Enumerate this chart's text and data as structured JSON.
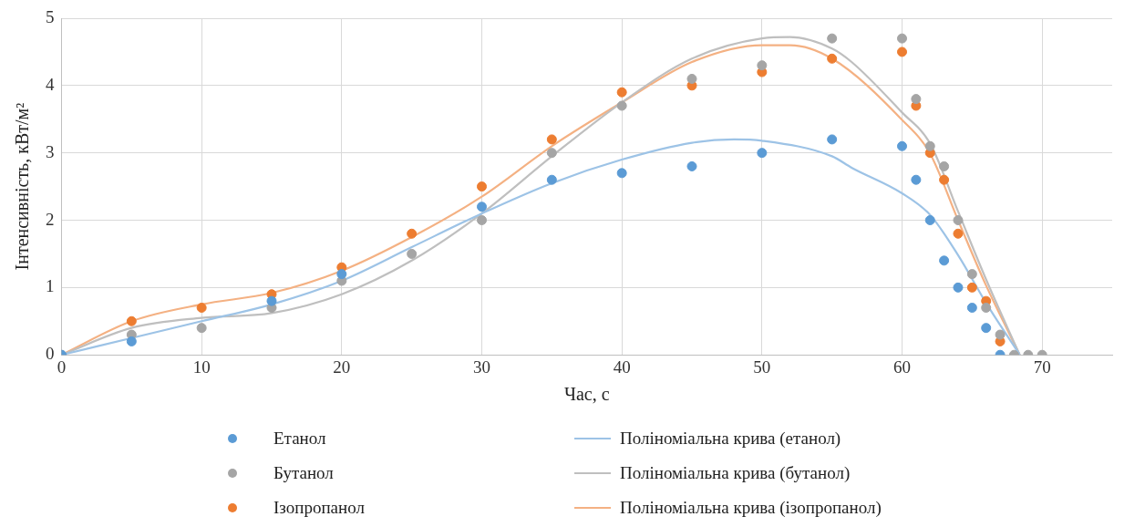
{
  "chart_data": {
    "type": "scatter",
    "xlabel": "Час, с",
    "ylabel": "Інтенсивність, кВт/м²",
    "xlim": [
      0,
      75
    ],
    "xticks": [
      0,
      10,
      20,
      30,
      40,
      50,
      60,
      70
    ],
    "ylim": [
      0,
      5
    ],
    "yticks": [
      0,
      1,
      2,
      3,
      4,
      5
    ],
    "grid": true,
    "legend": "bottom",
    "marker": "circle",
    "x": [
      0,
      5,
      10,
      15,
      20,
      25,
      30,
      35,
      40,
      45,
      50,
      55,
      60,
      61,
      62,
      63,
      64,
      65,
      66,
      67,
      68,
      69,
      70
    ],
    "series": [
      {
        "name": "Етанол",
        "type": "scatter",
        "color": "#5b9bd5",
        "values": [
          0,
          0.2,
          null,
          0.8,
          1.2,
          null,
          2.2,
          2.6,
          2.7,
          2.8,
          3.0,
          3.2,
          3.1,
          2.6,
          2.0,
          1.4,
          1.0,
          0.7,
          0.4,
          0,
          null,
          null,
          null
        ]
      },
      {
        "name": "Бутанол",
        "type": "scatter",
        "color": "#a5a5a5",
        "values": [
          0,
          0.3,
          0.4,
          0.7,
          1.1,
          1.5,
          2.0,
          3.0,
          3.7,
          4.1,
          4.3,
          4.7,
          4.7,
          3.8,
          3.1,
          2.8,
          2.0,
          1.2,
          0.7,
          0.3,
          0,
          0,
          0
        ]
      },
      {
        "name": "Ізопропанол",
        "type": "scatter",
        "color": "#ed7d31",
        "values": [
          null,
          0.5,
          0.7,
          0.9,
          1.3,
          1.8,
          2.5,
          3.2,
          3.9,
          4.0,
          4.2,
          4.4,
          4.5,
          3.7,
          3.0,
          2.6,
          1.8,
          1.0,
          0.8,
          0.2,
          null,
          null,
          null
        ]
      },
      {
        "name": "Поліноміальна крива (етанол)",
        "type": "line",
        "marker": "none",
        "color": "#9dc3e6",
        "x": [
          0,
          5,
          10,
          15,
          20,
          25,
          30,
          35,
          40,
          45,
          48,
          50,
          55,
          56.4,
          60,
          62,
          64,
          66,
          68.4
        ],
        "values": [
          0,
          0.25,
          0.5,
          0.75,
          1.1,
          1.6,
          2.1,
          2.55,
          2.9,
          3.15,
          3.2,
          3.18,
          2.95,
          2.78,
          2.4,
          2.08,
          1.48,
          0.77,
          0
        ]
      },
      {
        "name": "Поліноміальна крива (бутанол)",
        "type": "line",
        "marker": "none",
        "color": "#bfbfbf",
        "x": [
          0,
          5,
          10,
          15,
          20,
          25,
          30,
          35,
          40,
          45,
          50,
          52,
          55,
          56.4,
          60,
          62,
          64,
          66,
          68.4
        ],
        "values": [
          0,
          0.4,
          0.55,
          0.62,
          0.9,
          1.4,
          2.1,
          2.95,
          3.75,
          4.4,
          4.7,
          4.72,
          4.55,
          4.35,
          3.6,
          3.14,
          2.13,
          1.12,
          0
        ]
      },
      {
        "name": "Поліноміальна крива (ізопропанол)",
        "type": "line",
        "marker": "none",
        "color": "#f4b183",
        "x": [
          0,
          5,
          10,
          15,
          20,
          25,
          30,
          35,
          40,
          45,
          50,
          52,
          55,
          60,
          62,
          64,
          66,
          68.4
        ],
        "values": [
          0,
          0.5,
          0.75,
          0.92,
          1.25,
          1.75,
          2.35,
          3.1,
          3.75,
          4.35,
          4.6,
          4.6,
          4.4,
          3.49,
          2.99,
          2.0,
          1.03,
          0
        ]
      }
    ]
  }
}
